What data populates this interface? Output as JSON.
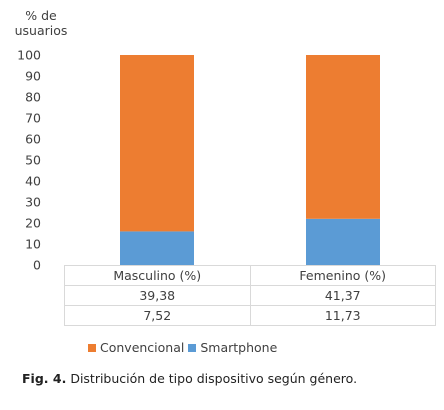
{
  "chart_data": {
    "type": "bar",
    "stacked": true,
    "percent_stacked": true,
    "ylabel_lines": [
      "% de",
      "usuarios"
    ],
    "ylim": [
      0,
      100
    ],
    "yticks": [
      "0",
      "10",
      "20",
      "30",
      "40",
      "50",
      "60",
      "70",
      "80",
      "90",
      "100"
    ],
    "categories": [
      "Masculino",
      "Femenino"
    ],
    "series": [
      {
        "name": "Smartphone",
        "color": "#5b9bd5",
        "values": [
          16,
          22
        ]
      },
      {
        "name": "Convencional",
        "color": "#ed7d31",
        "values": [
          84,
          78
        ]
      }
    ],
    "table": {
      "headers": [
        "Masculino (%)",
        "Femenino (%)"
      ],
      "rows": [
        [
          "39,38",
          "41,37"
        ],
        [
          "7,52",
          "11,73"
        ]
      ]
    },
    "legend": [
      "Convencional",
      "Smartphone"
    ],
    "legend_position": "bottom",
    "grid": false
  },
  "caption": {
    "label": "Fig. 4.",
    "text": "Distribución de tipo dispositivo según género."
  }
}
